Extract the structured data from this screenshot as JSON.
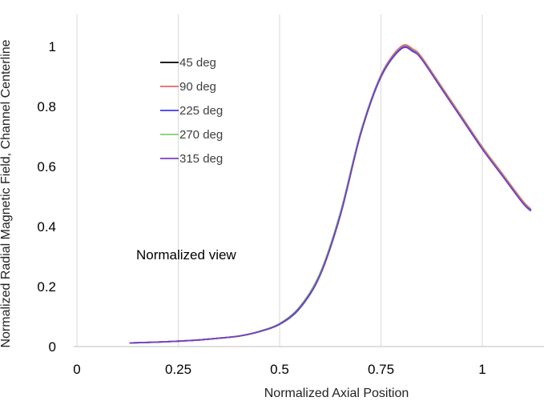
{
  "chart_data": {
    "type": "line",
    "title": "",
    "xlabel": "Normalized Axial Position",
    "ylabel": "Normalized Radial Magnetic Field, Channel Centerline",
    "xlim": [
      0,
      1.15
    ],
    "ylim": [
      0,
      1.1
    ],
    "x_ticks": [
      "0",
      "0.25",
      "0.5",
      "0.75",
      "1"
    ],
    "y_ticks": [
      "0",
      "0.2",
      "0.4",
      "0.6",
      "0.8",
      "1"
    ],
    "grid": {
      "vertical": true,
      "horizontal": false
    },
    "legend_position": "upper-left",
    "annotation": "Normalized view",
    "x": [
      0.13,
      0.2,
      0.25,
      0.3,
      0.35,
      0.4,
      0.45,
      0.5,
      0.55,
      0.6,
      0.65,
      0.7,
      0.75,
      0.8,
      0.83,
      0.85,
      0.9,
      0.95,
      1.0,
      1.05,
      1.1,
      1.12
    ],
    "series": [
      {
        "name": "45 deg",
        "color": "#000000",
        "values": [
          0.012,
          0.015,
          0.018,
          0.022,
          0.028,
          0.035,
          0.05,
          0.075,
          0.13,
          0.24,
          0.44,
          0.71,
          0.9,
          0.995,
          0.985,
          0.96,
          0.86,
          0.76,
          0.66,
          0.57,
          0.48,
          0.455
        ]
      },
      {
        "name": "90 deg",
        "color": "#f06060",
        "values": [
          0.012,
          0.015,
          0.018,
          0.022,
          0.028,
          0.035,
          0.05,
          0.076,
          0.132,
          0.242,
          0.442,
          0.712,
          0.905,
          1.0,
          0.99,
          0.965,
          0.865,
          0.765,
          0.665,
          0.575,
          0.485,
          0.458
        ]
      },
      {
        "name": "225 deg",
        "color": "#3a3af0",
        "values": [
          0.012,
          0.015,
          0.018,
          0.022,
          0.028,
          0.035,
          0.05,
          0.074,
          0.128,
          0.238,
          0.438,
          0.708,
          0.898,
          0.992,
          0.982,
          0.958,
          0.858,
          0.758,
          0.658,
          0.568,
          0.478,
          0.452
        ]
      },
      {
        "name": "270 deg",
        "color": "#7fcf6f",
        "values": [
          0.012,
          0.015,
          0.018,
          0.022,
          0.028,
          0.035,
          0.051,
          0.077,
          0.134,
          0.246,
          0.448,
          0.716,
          0.903,
          0.996,
          0.986,
          0.961,
          0.861,
          0.761,
          0.661,
          0.571,
          0.481,
          0.456
        ]
      },
      {
        "name": "315 deg",
        "color": "#7a3fbf",
        "values": [
          0.012,
          0.015,
          0.018,
          0.022,
          0.028,
          0.035,
          0.05,
          0.075,
          0.13,
          0.24,
          0.44,
          0.71,
          0.9,
          0.994,
          0.984,
          0.959,
          0.859,
          0.759,
          0.659,
          0.569,
          0.479,
          0.454
        ]
      }
    ]
  }
}
